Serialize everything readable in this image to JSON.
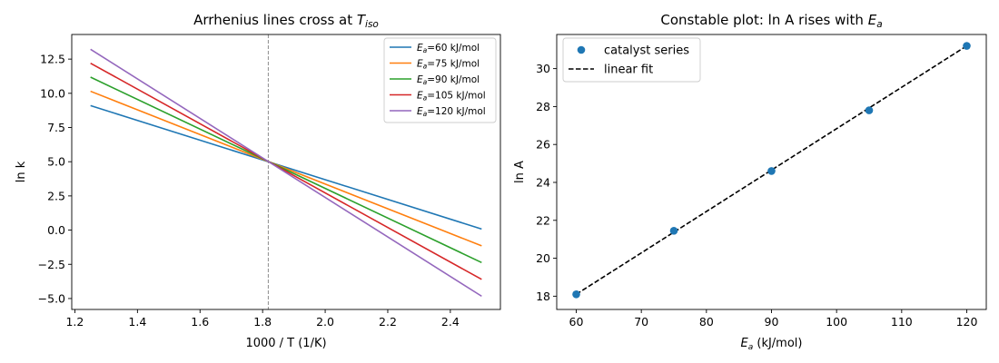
{
  "chart_data": [
    {
      "type": "line",
      "title": "Arrhenius lines cross at T_iso",
      "title_parts": {
        "main": "Arrhenius lines cross at ",
        "sym": "T",
        "sub": "iso"
      },
      "xlabel": "1000 / T (1/K)",
      "ylabel": "ln k",
      "xlim": [
        1.19,
        2.56
      ],
      "ylim": [
        -5.8,
        14.3
      ],
      "xticks": [
        1.2,
        1.4,
        1.6,
        1.8,
        2.0,
        2.2,
        2.4
      ],
      "xtick_labels": [
        "1.2",
        "1.4",
        "1.6",
        "1.8",
        "2.0",
        "2.2",
        "2.4"
      ],
      "yticks": [
        -5.0,
        -2.5,
        0.0,
        2.5,
        5.0,
        7.5,
        10.0,
        12.5
      ],
      "ytick_labels": [
        "−5.0",
        "−2.5",
        "0.0",
        "2.5",
        "5.0",
        "7.5",
        "10.0",
        "12.5"
      ],
      "isokinetic_x": 1.818,
      "legend_position": "top-right",
      "grid": false,
      "series": [
        {
          "name": "Ea=60 kJ/mol",
          "legend_sub": "a",
          "legend_rest": "=60 kJ/mol",
          "color": "#1f77b4",
          "x": [
            1.25,
            2.5
          ],
          "y": [
            9.1,
            0.08
          ]
        },
        {
          "name": "Ea=75 kJ/mol",
          "legend_sub": "a",
          "legend_rest": "=75 kJ/mol",
          "color": "#ff7f0e",
          "x": [
            1.25,
            2.5
          ],
          "y": [
            10.15,
            -1.15
          ]
        },
        {
          "name": "Ea=90 kJ/mol",
          "legend_sub": "a",
          "legend_rest": "=90 kJ/mol",
          "color": "#2ca02c",
          "x": [
            1.25,
            2.5
          ],
          "y": [
            11.18,
            -2.37
          ]
        },
        {
          "name": "Ea=105 kJ/mol",
          "legend_sub": "a",
          "legend_rest": "=105 kJ/mol",
          "color": "#d62728",
          "x": [
            1.25,
            2.5
          ],
          "y": [
            12.2,
            -3.6
          ]
        },
        {
          "name": "Ea=120 kJ/mol",
          "legend_sub": "a",
          "legend_rest": "=120 kJ/mol",
          "color": "#9467bd",
          "x": [
            1.25,
            2.5
          ],
          "y": [
            13.22,
            -4.83
          ]
        }
      ]
    },
    {
      "type": "scatter",
      "title": "Constable plot: ln A rises with Ea",
      "title_parts": {
        "main": "Constable plot: ln A rises with ",
        "sym": "E",
        "sub": "a"
      },
      "xlabel": "Ea (kJ/mol)",
      "xlabel_parts": {
        "sym": "E",
        "sub": "a",
        "rest": " (kJ/mol)"
      },
      "ylabel": "ln A",
      "xlim": [
        57,
        123
      ],
      "ylim": [
        17.3,
        31.8
      ],
      "xticks": [
        60,
        70,
        80,
        90,
        100,
        110,
        120
      ],
      "xtick_labels": [
        "60",
        "70",
        "80",
        "90",
        "100",
        "110",
        "120"
      ],
      "yticks": [
        18,
        20,
        22,
        24,
        26,
        28,
        30
      ],
      "ytick_labels": [
        "18",
        "20",
        "22",
        "24",
        "26",
        "28",
        "30"
      ],
      "legend_position": "top-left",
      "grid": false,
      "points": {
        "name": "catalyst series",
        "color": "#1f77b4",
        "x": [
          60,
          75,
          90,
          105,
          120
        ],
        "y": [
          18.1,
          21.45,
          24.6,
          27.8,
          31.2
        ]
      },
      "fit": {
        "name": "linear fit",
        "color": "#000000",
        "x": [
          60,
          120
        ],
        "y": [
          18.1,
          31.2
        ]
      }
    }
  ]
}
